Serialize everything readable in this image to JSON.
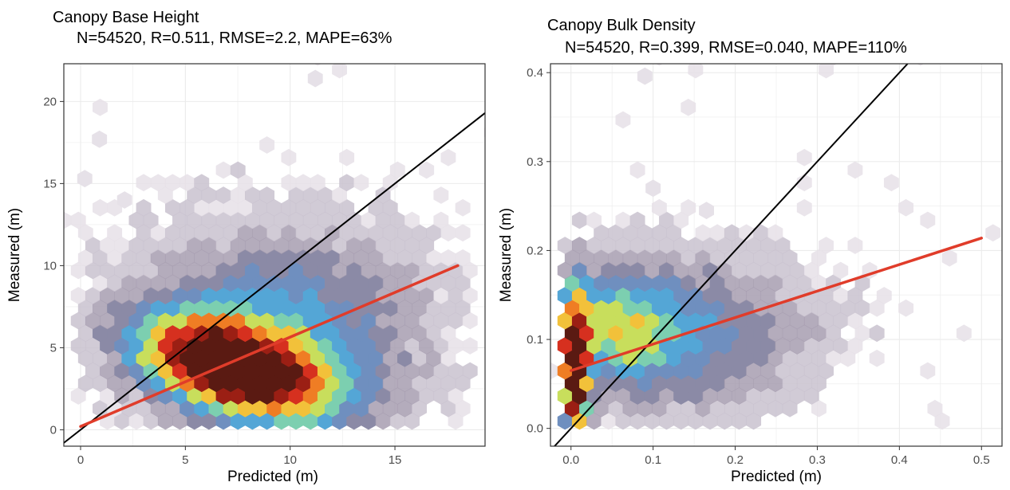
{
  "chart_data": [
    {
      "type": "hexbin",
      "title": "Canopy Base Height",
      "subtitle": "N=54520, R=0.511, RMSE=2.2, MAPE=63%",
      "xlabel": "Predicted (m)",
      "ylabel": "Measured (m)",
      "xlim": [
        -0.8,
        19.3
      ],
      "ylim": [
        -1.0,
        22.3
      ],
      "xticks": [
        0,
        5,
        10,
        15
      ],
      "xtick_labels": [
        "0",
        "5",
        "10",
        "15"
      ],
      "yticks": [
        0,
        5,
        10,
        15,
        20
      ],
      "ytick_labels": [
        "0",
        "5",
        "10",
        "15",
        "20"
      ],
      "grid": true,
      "identity_line": {
        "color": "#000000",
        "points": [
          [
            -0.8,
            -0.8
          ],
          [
            19.3,
            19.3
          ]
        ]
      },
      "regression_line": {
        "color": "#e03c2a",
        "points": [
          [
            0,
            0.2
          ],
          [
            18,
            10.0
          ]
        ]
      },
      "density_center": {
        "x": 7.3,
        "y": 3.8
      },
      "outliers": [
        [
          11.2,
          21.4
        ],
        [
          0.9,
          17.7
        ],
        [
          0.2,
          15.3
        ],
        [
          2.1,
          14.0
        ]
      ]
    },
    {
      "type": "hexbin",
      "title": "Canopy Bulk Density",
      "subtitle": "N=54520, R=0.399, RMSE=0.040, MAPE=110%",
      "xlabel": "Predicted (m)",
      "ylabel": "Measured (m)",
      "xlim": [
        -0.025,
        0.525
      ],
      "ylim": [
        -0.02,
        0.41
      ],
      "xticks": [
        0.0,
        0.1,
        0.2,
        0.3,
        0.4,
        0.5
      ],
      "xtick_labels": [
        "0.0",
        "0.1",
        "0.2",
        "0.3",
        "0.4",
        "0.5"
      ],
      "yticks": [
        0.0,
        0.1,
        0.2,
        0.3,
        0.4
      ],
      "ytick_labels": [
        "0.0",
        "0.1",
        "0.2",
        "0.3",
        "0.4"
      ],
      "grid": true,
      "identity_line": {
        "color": "#000000",
        "points": [
          [
            -0.025,
            -0.025
          ],
          [
            0.41,
            0.41
          ]
        ]
      },
      "regression_line": {
        "color": "#e03c2a",
        "points": [
          [
            0.0,
            0.065
          ],
          [
            0.5,
            0.214
          ]
        ]
      },
      "density_center": {
        "x": 0.005,
        "y": 0.06
      },
      "outliers": [
        [
          0.09,
          0.396
        ],
        [
          0.1,
          0.27
        ],
        [
          0.165,
          0.245
        ]
      ]
    }
  ],
  "colors": {
    "panel_border": "#333333",
    "grid": "#ebebeb",
    "identity": "#000000",
    "regression": "#e03c2a",
    "density_ramp": [
      "#e6e1e8",
      "#c9c2cf",
      "#a79eb0",
      "#8b8aa6",
      "#6f8fbf",
      "#54a6d6",
      "#7ccfb0",
      "#c8de5c",
      "#f2c13a",
      "#ef7d24",
      "#d6301f",
      "#9b1f14",
      "#5a1a12"
    ]
  }
}
